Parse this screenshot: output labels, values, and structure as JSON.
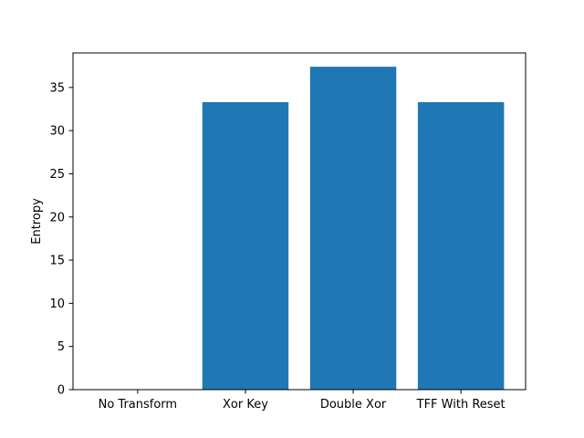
{
  "chart_data": {
    "type": "bar",
    "categories": [
      "No Transform",
      "Xor Key",
      "Double Xor",
      "TFF With Reset"
    ],
    "values": [
      0,
      33.3,
      37.4,
      33.3
    ],
    "title": "",
    "xlabel": "",
    "ylabel": "Entropy",
    "ylim": [
      0,
      39
    ],
    "yticks": [
      0,
      5,
      10,
      15,
      20,
      25,
      30,
      35
    ],
    "grid": false,
    "bar_color": "#1f77b4"
  }
}
